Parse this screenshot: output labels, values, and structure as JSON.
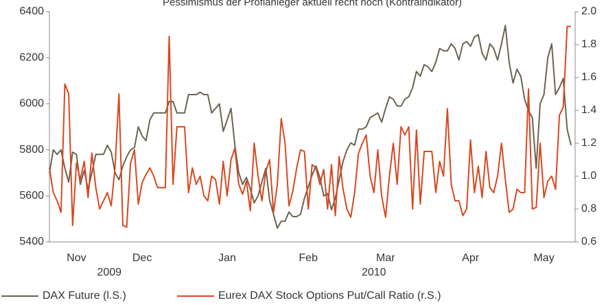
{
  "chart_data": {
    "type": "line",
    "title": "Pessimismus der Profianleger aktuell recht hoch (Kontraindikator)",
    "categories": [
      null,
      null,
      null,
      null,
      null,
      null,
      null,
      "Nov",
      null,
      null,
      null,
      null,
      null,
      null,
      null,
      null,
      null,
      null,
      null,
      null,
      null,
      null,
      null,
      null,
      "Dec",
      null,
      null,
      null,
      null,
      null,
      null,
      null,
      null,
      null,
      null,
      null,
      null,
      null,
      null,
      null,
      null,
      null,
      null,
      null,
      null,
      null,
      "Jan",
      null,
      null,
      null,
      null,
      null,
      null,
      null,
      null,
      null,
      null,
      null,
      null,
      null,
      null,
      null,
      null,
      null,
      null,
      null,
      null,
      "Feb",
      null,
      null,
      null,
      null,
      null,
      null,
      null,
      null,
      null,
      null,
      null,
      null,
      null,
      null,
      null,
      null,
      null,
      null,
      null,
      "Mar",
      null,
      null,
      null,
      null,
      null,
      null,
      null,
      null,
      null,
      null,
      null,
      null,
      null,
      null,
      null,
      null,
      null,
      null,
      null,
      null,
      null,
      "Apr",
      null,
      null,
      null,
      null,
      null,
      null,
      null,
      null,
      null,
      null,
      null,
      null,
      null,
      null,
      null,
      null,
      null,
      null,
      "May",
      null,
      null,
      null,
      null,
      null,
      null,
      null
    ],
    "year_labels": [
      "2009",
      "2010"
    ],
    "series": [
      {
        "name": "DAX Future (l.S.)",
        "color": "#6b6350",
        "axis": "y",
        "values": [
          5700,
          5800,
          5780,
          5800,
          5720,
          5660,
          5790,
          5780,
          5650,
          5710,
          5630,
          5700,
          5780,
          5780,
          5780,
          5820,
          5790,
          5700,
          5670,
          5730,
          5770,
          5800,
          5810,
          5900,
          5860,
          5840,
          5930,
          5960,
          5960,
          5960,
          5960,
          6010,
          6010,
          5960,
          5960,
          5960,
          6040,
          6040,
          6040,
          6050,
          6040,
          6040,
          5960,
          5980,
          6000,
          5880,
          5930,
          5980,
          5820,
          5700,
          5650,
          5680,
          5630,
          5570,
          5600,
          5660,
          5720,
          5580,
          5520,
          5460,
          5490,
          5490,
          5530,
          5510,
          5510,
          5520,
          5590,
          5640,
          5690,
          5730,
          5680,
          5600,
          5610,
          5540,
          5590,
          5670,
          5750,
          5800,
          5830,
          5820,
          5890,
          5890,
          5900,
          5940,
          5950,
          5960,
          5920,
          5980,
          6030,
          6020,
          5990,
          5990,
          6020,
          6030,
          6070,
          6140,
          6120,
          6170,
          6160,
          6140,
          6180,
          6240,
          6230,
          6230,
          6260,
          6240,
          6190,
          6260,
          6270,
          6250,
          6290,
          6300,
          6220,
          6190,
          6260,
          6240,
          6190,
          6260,
          6340,
          6180,
          6090,
          6150,
          6120,
          6020,
          5970,
          5940,
          5720,
          6000,
          6040,
          6200,
          6260,
          6040,
          6070,
          6110,
          5890,
          5820
        ]
      },
      {
        "name": "Eurex DAX Stock Options Put/Call Ratio (r.S.)",
        "color": "#d8471e",
        "axis": "y2",
        "values": [
          1.05,
          0.9,
          0.85,
          0.78,
          1.56,
          1.5,
          0.7,
          1.08,
          0.98,
          1.09,
          0.87,
          1.14,
          0.93,
          0.8,
          0.85,
          0.9,
          0.82,
          1.06,
          1.5,
          0.7,
          0.69,
          1.08,
          1.16,
          0.83,
          0.96,
          1.01,
          1.05,
          1.0,
          0.93,
          0.93,
          0.93,
          1.85,
          0.95,
          1.3,
          1.3,
          1.3,
          0.9,
          1.05,
          0.95,
          1.0,
          0.88,
          0.85,
          1.0,
          0.98,
          0.83,
          1.09,
          0.88,
          1.1,
          1.17,
          0.95,
          0.89,
          0.97,
          0.79,
          1.2,
          1.0,
          0.85,
          1.03,
          1.1,
          0.78,
          0.95,
          1.35,
          1.2,
          0.82,
          0.91,
          1.05,
          1.16,
          1.15,
          0.8,
          1.07,
          1.05,
          0.95,
          1.04,
          0.8,
          1.07,
          0.76,
          1.12,
          0.92,
          0.8,
          0.75,
          0.9,
          1.14,
          1.2,
          1.25,
          1.0,
          0.9,
          1.16,
          0.88,
          0.75,
          1.0,
          1.2,
          0.95,
          1.3,
          1.25,
          1.3,
          0.8,
          1.28,
          0.83,
          1.15,
          1.15,
          1.15,
          0.9,
          1.09,
          1.0,
          1.41,
          0.95,
          0.85,
          0.85,
          0.76,
          0.8,
          1.22,
          0.9,
          1.06,
          0.87,
          1.15,
          0.93,
          0.9,
          1.0,
          1.2,
          0.98,
          0.78,
          0.8,
          0.92,
          0.9,
          0.9,
          1.53,
          0.8,
          0.81,
          1.2,
          0.87,
          0.97,
          1.0,
          0.92,
          1.37,
          1.42,
          1.91,
          1.91
        ]
      }
    ],
    "ylim": [
      5400,
      6400
    ],
    "yticks": [
      5400,
      5600,
      5800,
      6000,
      6200,
      6400
    ],
    "y2lim": [
      0.6,
      2.0
    ],
    "y2ticks": [
      0.6,
      0.8,
      {
        "value": 1.0,
        "label": "1.0"
      },
      1.2,
      1.4,
      1.6,
      1.8,
      {
        "value": 2.0,
        "label": "2.0"
      }
    ],
    "legend": "bottom-left"
  }
}
